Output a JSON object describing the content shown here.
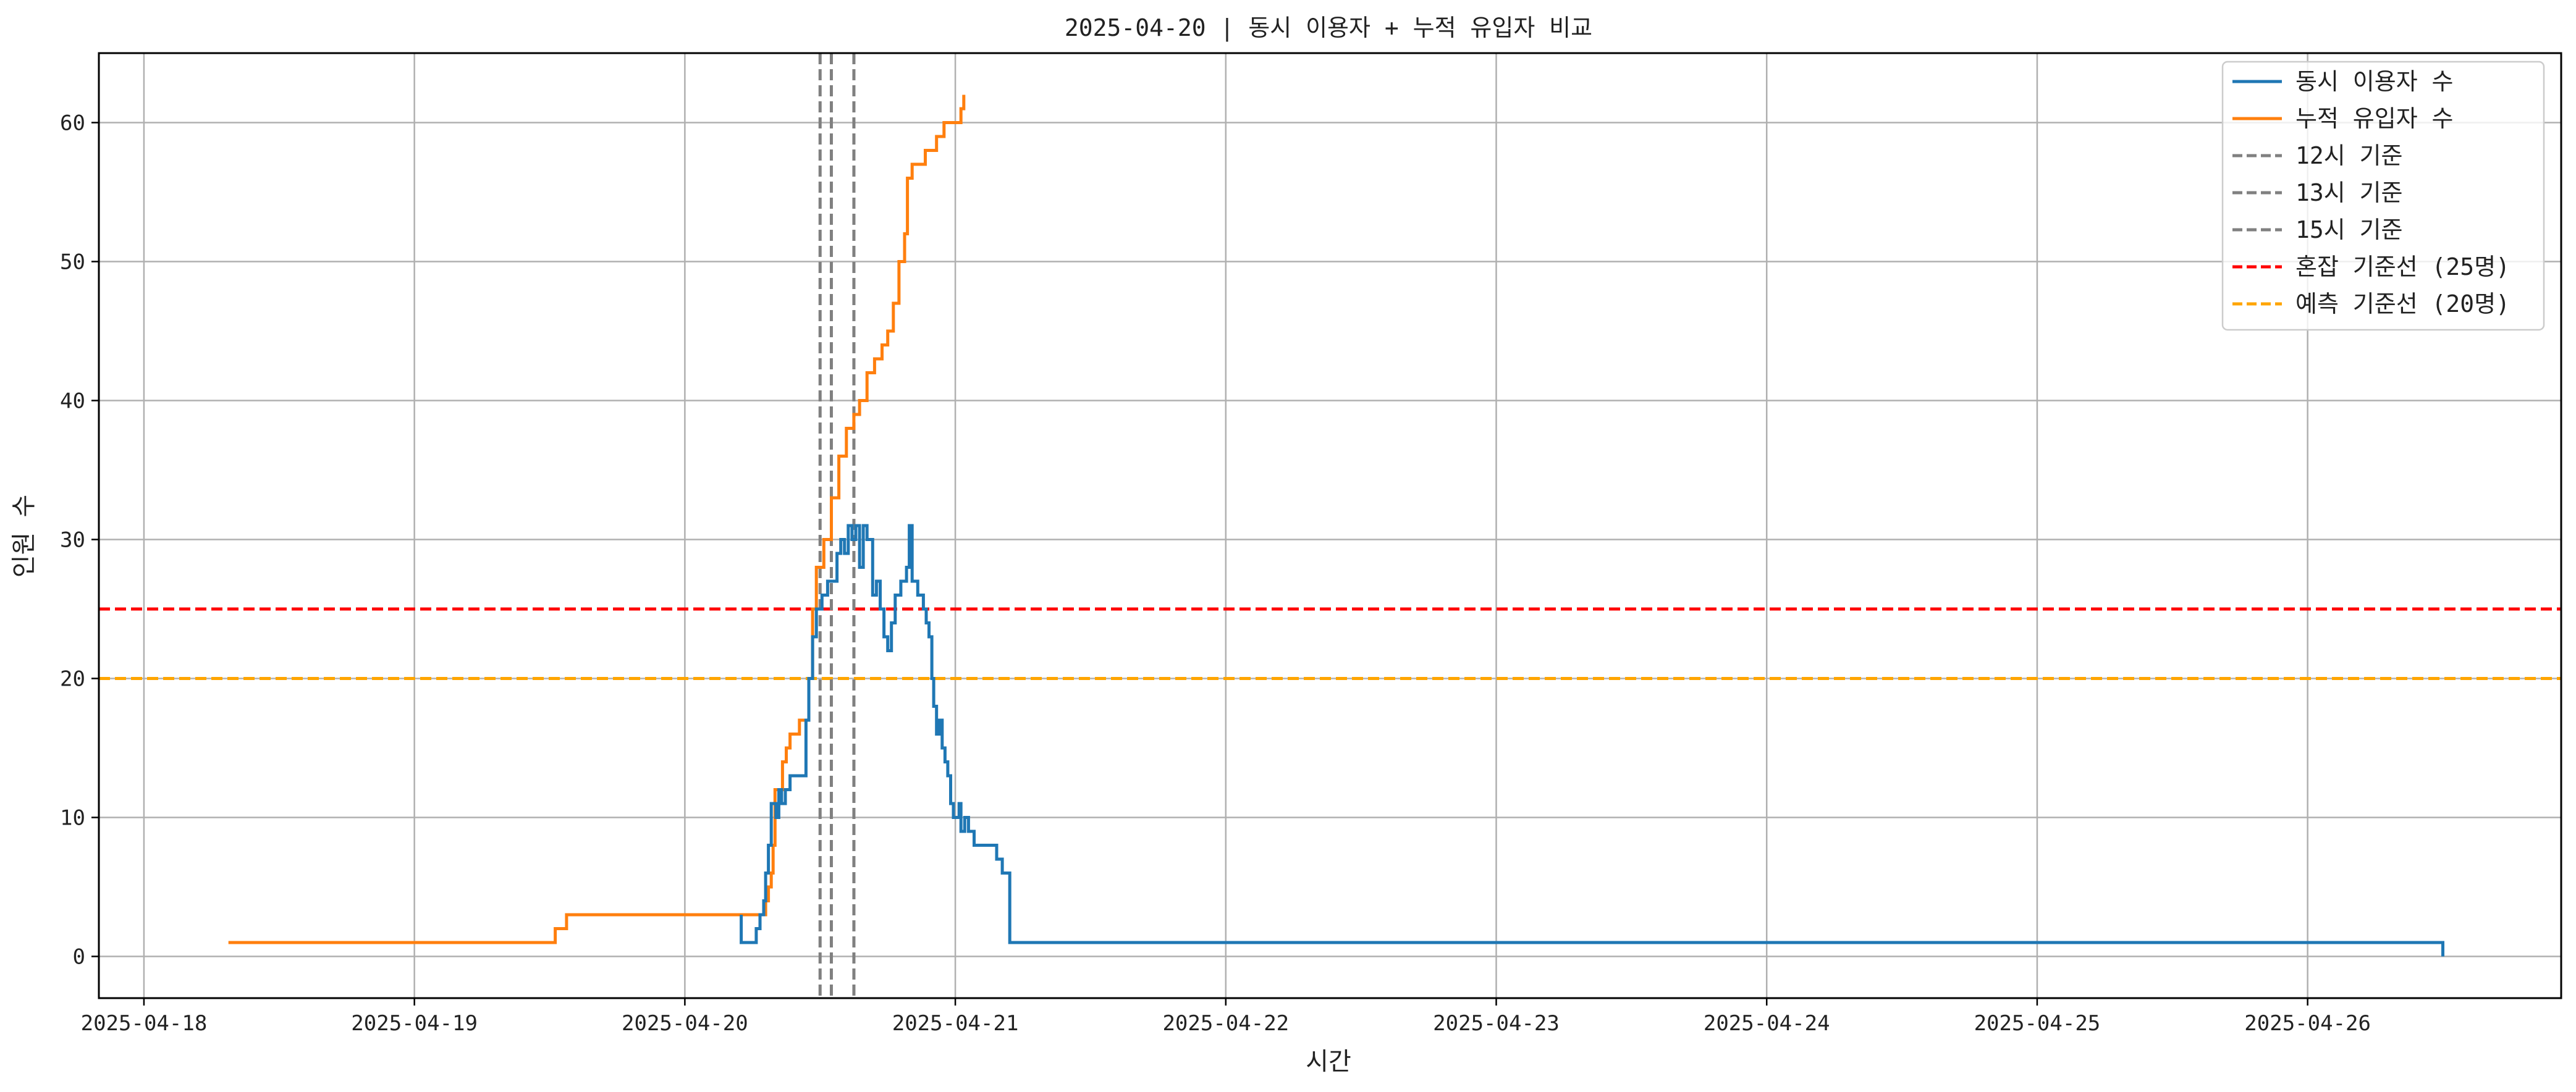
{
  "chart_data": {
    "type": "line",
    "title": "2025-04-20 | 동시 이용자 + 누적 유입자 비교",
    "xlabel": "시간",
    "ylabel": "인원 수",
    "xlim": [
      "2025-04-17T20:00",
      "2025-04-26T22:30"
    ],
    "ylim": [
      -3,
      65
    ],
    "x_ticks": [
      "2025-04-18",
      "2025-04-19",
      "2025-04-20",
      "2025-04-21",
      "2025-04-22",
      "2025-04-23",
      "2025-04-24",
      "2025-04-25",
      "2025-04-26"
    ],
    "y_ticks": [
      0,
      10,
      20,
      30,
      40,
      50,
      60
    ],
    "grid": true,
    "legend_position": "top-right",
    "series": [
      {
        "name": "동시 이용자 수",
        "color": "#1f77b4",
        "style": "step",
        "points": [
          [
            "2025-04-20T05:00",
            3
          ],
          [
            "2025-04-20T05:00",
            1
          ],
          [
            "2025-04-20T06:20",
            1
          ],
          [
            "2025-04-20T06:20",
            2
          ],
          [
            "2025-04-20T06:40",
            3
          ],
          [
            "2025-04-20T07:00",
            4
          ],
          [
            "2025-04-20T07:10",
            6
          ],
          [
            "2025-04-20T07:25",
            8
          ],
          [
            "2025-04-20T07:40",
            11
          ],
          [
            "2025-04-20T08:05",
            10
          ],
          [
            "2025-04-20T08:20",
            12
          ],
          [
            "2025-04-20T08:35",
            11
          ],
          [
            "2025-04-20T08:55",
            12
          ],
          [
            "2025-04-20T09:20",
            13
          ],
          [
            "2025-04-20T10:30",
            13
          ],
          [
            "2025-04-20T10:45",
            17
          ],
          [
            "2025-04-20T11:00",
            20
          ],
          [
            "2025-04-20T11:20",
            23
          ],
          [
            "2025-04-20T11:40",
            25
          ],
          [
            "2025-04-20T12:10",
            26
          ],
          [
            "2025-04-20T12:40",
            27
          ],
          [
            "2025-04-20T13:30",
            29
          ],
          [
            "2025-04-20T13:50",
            30
          ],
          [
            "2025-04-20T14:10",
            29
          ],
          [
            "2025-04-20T14:30",
            31
          ],
          [
            "2025-04-20T14:50",
            30
          ],
          [
            "2025-04-20T15:10",
            31
          ],
          [
            "2025-04-20T15:30",
            28
          ],
          [
            "2025-04-20T15:50",
            31
          ],
          [
            "2025-04-20T16:10",
            30
          ],
          [
            "2025-04-20T16:40",
            26
          ],
          [
            "2025-04-20T17:00",
            27
          ],
          [
            "2025-04-20T17:20",
            25
          ],
          [
            "2025-04-20T17:40",
            23
          ],
          [
            "2025-04-20T18:00",
            22
          ],
          [
            "2025-04-20T18:20",
            24
          ],
          [
            "2025-04-20T18:40",
            26
          ],
          [
            "2025-04-20T19:10",
            27
          ],
          [
            "2025-04-20T19:40",
            28
          ],
          [
            "2025-04-20T19:55",
            31
          ],
          [
            "2025-04-20T20:10",
            27
          ],
          [
            "2025-04-20T20:40",
            26
          ],
          [
            "2025-04-20T21:10",
            25
          ],
          [
            "2025-04-20T21:25",
            24
          ],
          [
            "2025-04-20T21:40",
            23
          ],
          [
            "2025-04-20T21:55",
            20
          ],
          [
            "2025-04-20T22:05",
            18
          ],
          [
            "2025-04-20T22:20",
            16
          ],
          [
            "2025-04-20T22:35",
            17
          ],
          [
            "2025-04-20T22:50",
            15
          ],
          [
            "2025-04-20T23:05",
            14
          ],
          [
            "2025-04-20T23:20",
            13
          ],
          [
            "2025-04-20T23:35",
            11
          ],
          [
            "2025-04-20T23:50",
            10
          ],
          [
            "2025-04-21T00:20",
            11
          ],
          [
            "2025-04-21T00:30",
            9
          ],
          [
            "2025-04-21T00:50",
            10
          ],
          [
            "2025-04-21T01:10",
            9
          ],
          [
            "2025-04-21T01:40",
            8
          ],
          [
            "2025-04-21T03:40",
            7
          ],
          [
            "2025-04-21T04:10",
            6
          ],
          [
            "2025-04-21T04:50",
            1
          ],
          [
            "2025-04-26T12:00",
            1
          ],
          [
            "2025-04-26T12:00",
            0
          ]
        ]
      },
      {
        "name": "누적 유입자 수",
        "color": "#ff7f0e",
        "style": "step",
        "points": [
          [
            "2025-04-18T07:30",
            1
          ],
          [
            "2025-04-19T12:30",
            2
          ],
          [
            "2025-04-19T13:30",
            3
          ],
          [
            "2025-04-20T07:10",
            4
          ],
          [
            "2025-04-20T07:25",
            5
          ],
          [
            "2025-04-20T07:40",
            6
          ],
          [
            "2025-04-20T07:50",
            8
          ],
          [
            "2025-04-20T08:00",
            12
          ],
          [
            "2025-04-20T08:40",
            14
          ],
          [
            "2025-04-20T09:00",
            15
          ],
          [
            "2025-04-20T09:20",
            16
          ],
          [
            "2025-04-20T10:10",
            17
          ],
          [
            "2025-04-20T11:00",
            20
          ],
          [
            "2025-04-20T11:20",
            25
          ],
          [
            "2025-04-20T11:40",
            28
          ],
          [
            "2025-04-20T12:20",
            30
          ],
          [
            "2025-04-20T13:00",
            33
          ],
          [
            "2025-04-20T13:40",
            36
          ],
          [
            "2025-04-20T14:20",
            38
          ],
          [
            "2025-04-20T15:00",
            39
          ],
          [
            "2025-04-20T15:30",
            40
          ],
          [
            "2025-04-20T16:10",
            42
          ],
          [
            "2025-04-20T16:50",
            43
          ],
          [
            "2025-04-20T17:30",
            44
          ],
          [
            "2025-04-20T18:00",
            45
          ],
          [
            "2025-04-20T18:30",
            47
          ],
          [
            "2025-04-20T19:00",
            50
          ],
          [
            "2025-04-20T19:30",
            52
          ],
          [
            "2025-04-20T19:45",
            56
          ],
          [
            "2025-04-20T20:10",
            57
          ],
          [
            "2025-04-20T21:20",
            58
          ],
          [
            "2025-04-20T22:20",
            59
          ],
          [
            "2025-04-20T23:00",
            60
          ],
          [
            "2025-04-21T00:30",
            61
          ],
          [
            "2025-04-21T00:45",
            62
          ]
        ]
      }
    ],
    "vertical_lines": [
      {
        "label": "12시 기준",
        "x": "2025-04-20T12:00",
        "color": "#808080",
        "style": "dashed"
      },
      {
        "label": "13시 기준",
        "x": "2025-04-20T13:00",
        "color": "#808080",
        "style": "dashed"
      },
      {
        "label": "15시 기준",
        "x": "2025-04-20T15:00",
        "color": "#808080",
        "style": "dashed"
      }
    ],
    "horizontal_lines": [
      {
        "label": "혼잡 기준선 (25명)",
        "y": 25,
        "color": "#ff0000",
        "style": "dashed"
      },
      {
        "label": "예측 기준선 (20명)",
        "y": 20,
        "color": "#ffa500",
        "style": "dashed"
      }
    ],
    "legend": [
      {
        "label": "동시 이용자 수",
        "color": "#1f77b4",
        "style": "solid"
      },
      {
        "label": "누적 유입자 수",
        "color": "#ff7f0e",
        "style": "solid"
      },
      {
        "label": "12시 기준",
        "color": "#808080",
        "style": "dashed"
      },
      {
        "label": "13시 기준",
        "color": "#808080",
        "style": "dashed"
      },
      {
        "label": "15시 기준",
        "color": "#808080",
        "style": "dashed"
      },
      {
        "label": "혼잡 기준선 (25명)",
        "color": "#ff0000",
        "style": "dashed"
      },
      {
        "label": "예측 기준선 (20명)",
        "color": "#ffa500",
        "style": "dashed"
      }
    ]
  }
}
